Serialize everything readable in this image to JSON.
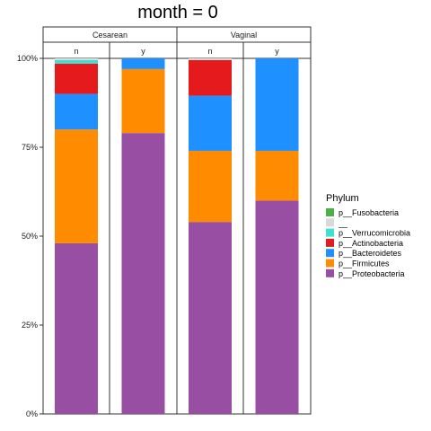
{
  "chart_data": {
    "type": "bar",
    "stacked": true,
    "percent": true,
    "title": "month = 0",
    "facets_top": [
      "Cesarean",
      "Vaginal"
    ],
    "facets_sub": [
      {
        "group": "Cesarean",
        "label": "n"
      },
      {
        "group": "Cesarean",
        "label": "y"
      },
      {
        "group": "Vaginal",
        "label": "n"
      },
      {
        "group": "Vaginal",
        "label": "y"
      }
    ],
    "y_ticks": [
      "0%",
      "25%",
      "50%",
      "75%",
      "100%"
    ],
    "ylim": [
      0,
      1
    ],
    "legend": {
      "title": "Phylum",
      "position": "right",
      "entries": [
        {
          "label": "p__Fusobacteria",
          "color": "#4daf4a"
        },
        {
          "label": "__",
          "color": "#d9d9d9"
        },
        {
          "label": "p__Verrucomicrobia",
          "color": "#40e0d0"
        },
        {
          "label": "p__Actinobacteria",
          "color": "#e41a1c"
        },
        {
          "label": "p__Bacteroidetes",
          "color": "#1e90ff"
        },
        {
          "label": "p__Firmicutes",
          "color": "#ff8c00"
        },
        {
          "label": "p__Proteobacteria",
          "color": "#984ea3"
        }
      ]
    },
    "series": [
      {
        "name": "p__Proteobacteria",
        "color": "#984ea3",
        "values": [
          0.48,
          0.79,
          0.54,
          0.6
        ]
      },
      {
        "name": "p__Firmicutes",
        "color": "#ff8c00",
        "values": [
          0.32,
          0.18,
          0.2,
          0.14
        ]
      },
      {
        "name": "p__Bacteroidetes",
        "color": "#1e90ff",
        "values": [
          0.1,
          0.03,
          0.155,
          0.26
        ]
      },
      {
        "name": "p__Actinobacteria",
        "color": "#e41a1c",
        "values": [
          0.085,
          0.0,
          0.1,
          0.0
        ]
      },
      {
        "name": "p__Verrucomicrobia",
        "color": "#40e0d0",
        "values": [
          0.01,
          0.0,
          0.0,
          0.0
        ]
      },
      {
        "name": "__",
        "color": "#d9d9d9",
        "values": [
          0.005,
          0.0,
          0.005,
          0.0
        ]
      },
      {
        "name": "p__Fusobacteria",
        "color": "#4daf4a",
        "values": [
          0.0,
          0.0,
          0.0,
          0.0
        ]
      }
    ]
  }
}
